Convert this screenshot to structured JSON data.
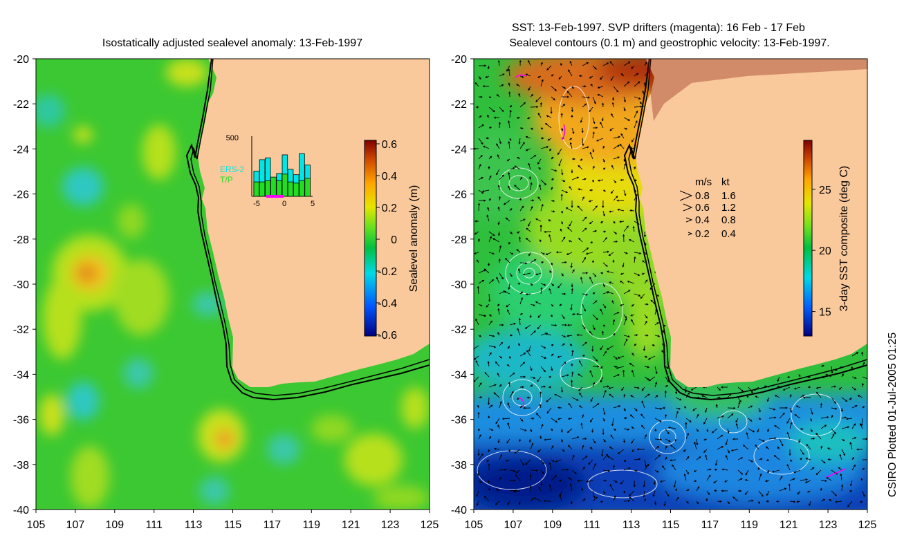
{
  "figure": {
    "left_panel": {
      "title": "Isostatically adjusted sealevel anomaly: 13-Feb-1997",
      "x_ticks": [
        "105",
        "107",
        "109",
        "111",
        "113",
        "115",
        "117",
        "119",
        "121",
        "123",
        "125"
      ],
      "y_ticks": [
        "-20",
        "-22",
        "-24",
        "-26",
        "-28",
        "-30",
        "-32",
        "-34",
        "-36",
        "-38",
        "-40"
      ],
      "colorbar": {
        "label": "Sealevel anomaly (m)",
        "ticks": [
          "0.6",
          "0.4",
          "0.2",
          "0",
          "-0.2",
          "-0.4",
          "-0.6"
        ],
        "range": [
          -0.6,
          0.6
        ],
        "colors": [
          "#00007f",
          "#0055ff",
          "#00d9e6",
          "#00c040",
          "#60e020",
          "#e6e600",
          "#ffa500",
          "#d04a00",
          "#800000"
        ]
      },
      "inset_histogram": {
        "y_max_label": "500",
        "x_ticks": [
          "-5",
          "0",
          "5"
        ],
        "legend": [
          {
            "label": "ERS-2",
            "color": "#00e6e6"
          },
          {
            "label": "T/P",
            "color": "#22dd22"
          }
        ],
        "ers2_counts": [
          210,
          305,
          320,
          150,
          190,
          345,
          225,
          180,
          355,
          260
        ],
        "tp_counts": [
          120,
          120,
          130,
          160,
          130,
          185,
          120,
          110,
          130,
          150
        ]
      }
    },
    "right_panel": {
      "title_line1": "SST: 13-Feb-1997. SVP drifters (magenta): 16 Feb - 17 Feb",
      "title_line2": "Sealevel contours (0.1 m) and geostrophic velocity: 13-Feb-1997.",
      "x_ticks": [
        "105",
        "107",
        "109",
        "111",
        "113",
        "115",
        "117",
        "119",
        "121",
        "123",
        "125"
      ],
      "y_ticks": [
        "-20",
        "-22",
        "-24",
        "-26",
        "-28",
        "-30",
        "-32",
        "-34",
        "-36",
        "-38",
        "-40"
      ],
      "colorbar": {
        "label": "3-day SST composite (deg C)",
        "ticks": [
          "25",
          "20",
          "15"
        ],
        "range_degC": [
          13,
          29
        ],
        "colors": [
          "#00007f",
          "#0060ff",
          "#00d9e6",
          "#00c040",
          "#70e020",
          "#e6e600",
          "#ffa500",
          "#d04a00",
          "#800000"
        ]
      },
      "velocity_key": {
        "header": [
          "m/s",
          "kt"
        ],
        "rows": [
          {
            "ms": "0.8",
            "kt": "1.6"
          },
          {
            "ms": "0.6",
            "kt": "1.2"
          },
          {
            "ms": "0.4",
            "kt": "0.8"
          },
          {
            "ms": "0.2",
            "kt": "0.4"
          }
        ]
      }
    },
    "credit": "CSIRO Plotted 01-Jul-2005 01:25",
    "land_color": "#f9c89b"
  }
}
